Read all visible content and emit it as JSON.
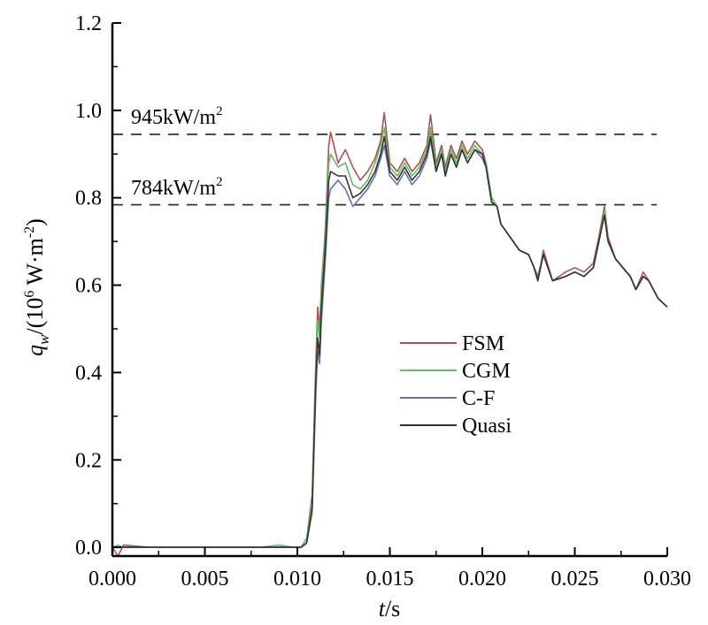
{
  "chart_data": {
    "type": "line",
    "xlabel": {
      "var": "t",
      "unit": "/s"
    },
    "ylabel": {
      "var": "q",
      "sub": "w",
      "unit_prefix": "/(10",
      "unit_exp": "6",
      "unit_mid": " W·m",
      "unit_exp2": "-2",
      "unit_suffix": ")"
    },
    "xlim": [
      0.0,
      0.03
    ],
    "ylim": [
      -0.02,
      1.2
    ],
    "xticks": [
      "0.000",
      "0.005",
      "0.010",
      "0.015",
      "0.020",
      "0.025",
      "0.030"
    ],
    "xtick_values": [
      0.0,
      0.005,
      0.01,
      0.015,
      0.02,
      0.025,
      0.03
    ],
    "yticks": [
      "0.0",
      "0.2",
      "0.4",
      "0.6",
      "0.8",
      "1.0",
      "1.2"
    ],
    "ytick_values": [
      0.0,
      0.2,
      0.4,
      0.6,
      0.8,
      1.0,
      1.2
    ],
    "grid": false,
    "legend_position": "center-right",
    "reference_lines": [
      {
        "y": 0.945,
        "label": "945kW/m",
        "label_exp": "2"
      },
      {
        "y": 0.784,
        "label": "784kW/m",
        "label_exp": "2"
      }
    ],
    "series": [
      {
        "name": "FSM",
        "color": "#b05050",
        "x": [
          0.0,
          0.0003,
          0.0006,
          0.002,
          0.005,
          0.008,
          0.009,
          0.0098,
          0.0102,
          0.0105,
          0.0108,
          0.011,
          0.0111,
          0.0112,
          0.0113,
          0.0115,
          0.0117,
          0.0118,
          0.0122,
          0.0126,
          0.013,
          0.0134,
          0.0138,
          0.0142,
          0.0145,
          0.0147,
          0.015,
          0.0154,
          0.0158,
          0.0162,
          0.0166,
          0.017,
          0.0172,
          0.0175,
          0.0178,
          0.018,
          0.0183,
          0.0186,
          0.0189,
          0.0192,
          0.0196,
          0.02,
          0.0202,
          0.0205,
          0.0208,
          0.021,
          0.0215,
          0.022,
          0.0225,
          0.0228,
          0.023,
          0.0233,
          0.0238,
          0.0245,
          0.025,
          0.0255,
          0.026,
          0.0263,
          0.0266,
          0.0268,
          0.0272,
          0.0276,
          0.028,
          0.0283,
          0.0287,
          0.029,
          0.0295,
          0.03
        ],
        "y": [
          0.0,
          -0.02,
          0.005,
          0.0,
          0.0,
          0.0,
          0.0,
          0.0,
          0.0,
          0.02,
          0.12,
          0.43,
          0.55,
          0.5,
          0.6,
          0.72,
          0.92,
          0.95,
          0.88,
          0.91,
          0.87,
          0.84,
          0.86,
          0.89,
          0.93,
          0.995,
          0.88,
          0.86,
          0.89,
          0.86,
          0.88,
          0.92,
          0.99,
          0.88,
          0.92,
          0.87,
          0.92,
          0.89,
          0.93,
          0.9,
          0.93,
          0.91,
          0.88,
          0.8,
          0.78,
          0.74,
          0.71,
          0.68,
          0.67,
          0.64,
          0.61,
          0.68,
          0.61,
          0.63,
          0.64,
          0.63,
          0.65,
          0.71,
          0.78,
          0.71,
          0.66,
          0.64,
          0.62,
          0.59,
          0.63,
          0.61,
          0.57,
          0.55
        ]
      },
      {
        "name": "CGM",
        "color": "#5ec05e",
        "x": [
          0.0,
          0.0003,
          0.0006,
          0.002,
          0.005,
          0.008,
          0.009,
          0.0098,
          0.0102,
          0.0105,
          0.0108,
          0.011,
          0.0111,
          0.0112,
          0.0113,
          0.0115,
          0.0117,
          0.0118,
          0.0122,
          0.0126,
          0.013,
          0.0134,
          0.0138,
          0.0142,
          0.0145,
          0.0147,
          0.015,
          0.0154,
          0.0158,
          0.0162,
          0.0166,
          0.017,
          0.0172,
          0.0175,
          0.0178,
          0.018,
          0.0183,
          0.0186,
          0.0189,
          0.0192,
          0.0196,
          0.02,
          0.0202,
          0.0205,
          0.0208,
          0.021,
          0.0215,
          0.022,
          0.0225,
          0.0228,
          0.023,
          0.0233,
          0.0238,
          0.0245,
          0.025,
          0.0255,
          0.026,
          0.0263,
          0.0266,
          0.0268,
          0.0272,
          0.0276,
          0.028,
          0.0283,
          0.0287,
          0.029,
          0.0295,
          0.03
        ],
        "y": [
          0.0,
          0.005,
          0.0,
          0.0,
          0.0,
          0.0,
          0.005,
          0.0,
          0.0,
          0.02,
          0.11,
          0.41,
          0.52,
          0.48,
          0.58,
          0.71,
          0.88,
          0.9,
          0.87,
          0.88,
          0.83,
          0.82,
          0.84,
          0.88,
          0.92,
          0.96,
          0.87,
          0.85,
          0.88,
          0.85,
          0.87,
          0.91,
          0.96,
          0.87,
          0.91,
          0.86,
          0.91,
          0.88,
          0.92,
          0.89,
          0.92,
          0.9,
          0.88,
          0.8,
          0.78,
          0.74,
          0.71,
          0.68,
          0.67,
          0.64,
          0.62,
          0.67,
          0.61,
          0.62,
          0.63,
          0.62,
          0.64,
          0.7,
          0.77,
          0.7,
          0.66,
          0.64,
          0.62,
          0.59,
          0.62,
          0.61,
          0.57,
          0.55
        ]
      },
      {
        "name": "C-F",
        "color": "#6b6bb8",
        "x": [
          0.0,
          0.0003,
          0.0006,
          0.002,
          0.005,
          0.008,
          0.009,
          0.0098,
          0.0102,
          0.0105,
          0.0108,
          0.011,
          0.0111,
          0.0112,
          0.0113,
          0.0115,
          0.0117,
          0.0118,
          0.0122,
          0.0126,
          0.013,
          0.0134,
          0.0138,
          0.0142,
          0.0145,
          0.0147,
          0.015,
          0.0154,
          0.0158,
          0.0162,
          0.0166,
          0.017,
          0.0172,
          0.0175,
          0.0178,
          0.018,
          0.0183,
          0.0186,
          0.0189,
          0.0192,
          0.0196,
          0.02,
          0.0202,
          0.0205,
          0.0208,
          0.021,
          0.0215,
          0.022,
          0.0225,
          0.0228,
          0.023,
          0.0233,
          0.0238,
          0.0245,
          0.025,
          0.0255,
          0.026,
          0.0263,
          0.0266,
          0.0268,
          0.0272,
          0.0276,
          0.028,
          0.0283,
          0.0287,
          0.029,
          0.0295,
          0.03
        ],
        "y": [
          0.0,
          0.0,
          0.0,
          0.0,
          0.0,
          0.0,
          0.0,
          0.0,
          0.0,
          0.01,
          0.08,
          0.36,
          0.45,
          0.42,
          0.52,
          0.65,
          0.8,
          0.82,
          0.84,
          0.82,
          0.78,
          0.8,
          0.82,
          0.85,
          0.89,
          0.92,
          0.85,
          0.83,
          0.86,
          0.83,
          0.85,
          0.89,
          0.93,
          0.86,
          0.9,
          0.85,
          0.9,
          0.87,
          0.91,
          0.88,
          0.91,
          0.89,
          0.87,
          0.79,
          0.78,
          0.74,
          0.71,
          0.68,
          0.67,
          0.64,
          0.62,
          0.67,
          0.61,
          0.62,
          0.63,
          0.62,
          0.64,
          0.7,
          0.76,
          0.7,
          0.66,
          0.64,
          0.62,
          0.59,
          0.62,
          0.61,
          0.57,
          0.55
        ]
      },
      {
        "name": "Quasi",
        "color": "#333333",
        "x": [
          0.0,
          0.0003,
          0.0006,
          0.002,
          0.005,
          0.008,
          0.009,
          0.0098,
          0.0102,
          0.0105,
          0.0108,
          0.011,
          0.0111,
          0.0112,
          0.0113,
          0.0115,
          0.0117,
          0.0118,
          0.0122,
          0.0126,
          0.013,
          0.0134,
          0.0138,
          0.0142,
          0.0145,
          0.0147,
          0.015,
          0.0154,
          0.0158,
          0.0162,
          0.0166,
          0.017,
          0.0172,
          0.0175,
          0.0178,
          0.018,
          0.0183,
          0.0186,
          0.0189,
          0.0192,
          0.0196,
          0.02,
          0.0202,
          0.0205,
          0.0208,
          0.021,
          0.0215,
          0.022,
          0.0225,
          0.0228,
          0.023,
          0.0233,
          0.0238,
          0.0245,
          0.025,
          0.0255,
          0.026,
          0.0263,
          0.0266,
          0.0268,
          0.0272,
          0.0276,
          0.028,
          0.0283,
          0.0287,
          0.029,
          0.0295,
          0.03
        ],
        "y": [
          0.0,
          0.0,
          0.0,
          0.0,
          0.0,
          0.0,
          0.0,
          0.0,
          0.0,
          0.01,
          0.09,
          0.38,
          0.48,
          0.44,
          0.55,
          0.68,
          0.84,
          0.86,
          0.85,
          0.85,
          0.8,
          0.81,
          0.83,
          0.86,
          0.9,
          0.94,
          0.86,
          0.84,
          0.87,
          0.84,
          0.86,
          0.9,
          0.94,
          0.86,
          0.9,
          0.85,
          0.9,
          0.87,
          0.91,
          0.88,
          0.91,
          0.9,
          0.87,
          0.79,
          0.78,
          0.74,
          0.71,
          0.68,
          0.67,
          0.64,
          0.61,
          0.67,
          0.61,
          0.62,
          0.63,
          0.62,
          0.64,
          0.7,
          0.76,
          0.7,
          0.66,
          0.64,
          0.62,
          0.59,
          0.62,
          0.61,
          0.57,
          0.55
        ]
      }
    ]
  }
}
